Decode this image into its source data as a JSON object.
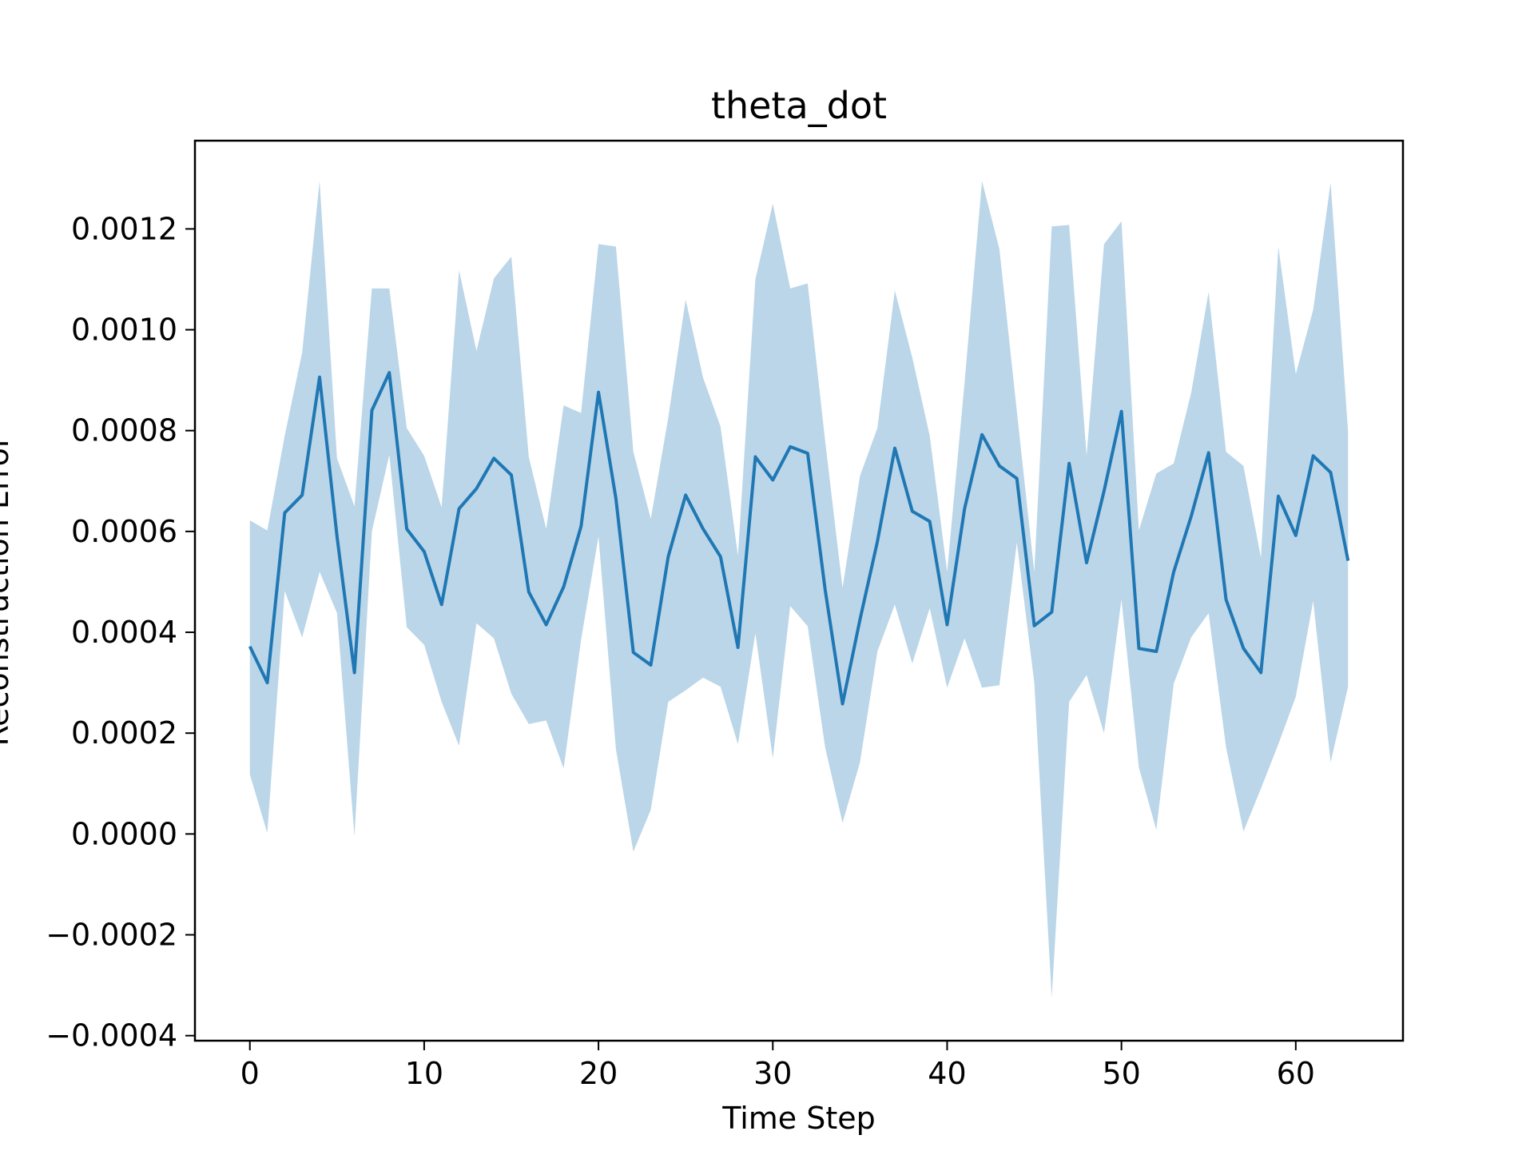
{
  "chart_data": {
    "type": "line",
    "title": "theta_dot",
    "xlabel": "Time Step",
    "ylabel": "Reconstruction Error",
    "xlim": [
      -3.15,
      66.15
    ],
    "ylim": [
      -0.00041,
      0.001375
    ],
    "xticks": [
      0,
      10,
      20,
      30,
      40,
      50,
      60
    ],
    "xtick_labels": [
      "0",
      "10",
      "20",
      "30",
      "40",
      "50",
      "60"
    ],
    "yticks": [
      -0.0004,
      -0.0002,
      0.0,
      0.0002,
      0.0004,
      0.0006,
      0.0008,
      0.001,
      0.0012
    ],
    "ytick_labels": [
      "−0.0004",
      "−0.0002",
      "0.0000",
      "0.0002",
      "0.0004",
      "0.0006",
      "0.0008",
      "0.0010",
      "0.0012"
    ],
    "grid": false,
    "colors": {
      "line": "#1f77b4",
      "band": "#1f77b4",
      "band_opacity": 0.3
    },
    "series": [
      {
        "x": [
          0,
          1,
          2,
          3,
          4,
          5,
          6,
          7,
          8,
          9,
          10,
          11,
          12,
          13,
          14,
          15,
          16,
          17,
          18,
          19,
          20,
          21,
          22,
          23,
          24,
          25,
          26,
          27,
          28,
          29,
          30,
          31,
          32,
          33,
          34,
          35,
          36,
          37,
          38,
          39,
          40,
          41,
          42,
          43,
          44,
          45,
          46,
          47,
          48,
          49,
          50,
          51,
          52,
          53,
          54,
          55,
          56,
          57,
          58,
          59,
          60,
          61,
          62,
          63
        ],
        "mean": [
          0.000372,
          0.0003,
          0.000637,
          0.000672,
          0.000906,
          0.00059,
          0.00032,
          0.00084,
          0.000915,
          0.000605,
          0.00056,
          0.000455,
          0.000645,
          0.000685,
          0.000745,
          0.000712,
          0.00048,
          0.000415,
          0.00049,
          0.00061,
          0.000876,
          0.000665,
          0.00036,
          0.000335,
          0.00055,
          0.000672,
          0.000605,
          0.00055,
          0.00037,
          0.000748,
          0.000702,
          0.000768,
          0.000755,
          0.000485,
          0.000258,
          0.000425,
          0.00058,
          0.000765,
          0.00064,
          0.00062,
          0.000415,
          0.000645,
          0.000792,
          0.00073,
          0.000705,
          0.000413,
          0.00044,
          0.000735,
          0.000538,
          0.00068,
          0.000838,
          0.000368,
          0.000362,
          0.00052,
          0.00063,
          0.000756,
          0.000465,
          0.000368,
          0.00032,
          0.00067,
          0.000592,
          0.00075,
          0.000717,
          0.000542
        ],
        "upper": [
          0.000622,
          0.000602,
          0.00079,
          0.000955,
          0.001295,
          0.000745,
          0.00065,
          0.001082,
          0.001082,
          0.000805,
          0.00075,
          0.000648,
          0.001118,
          0.000958,
          0.001102,
          0.001145,
          0.000748,
          0.000605,
          0.00085,
          0.000835,
          0.00117,
          0.001165,
          0.000758,
          0.000625,
          0.000825,
          0.00106,
          0.000905,
          0.000808,
          0.000552,
          0.0011,
          0.00125,
          0.001082,
          0.001092,
          0.00078,
          0.000488,
          0.00071,
          0.000805,
          0.001078,
          0.000945,
          0.00079,
          0.00052,
          0.000895,
          0.001295,
          0.00116,
          0.000838,
          0.00052,
          0.001205,
          0.001208,
          0.00075,
          0.00117,
          0.001215,
          0.000602,
          0.000715,
          0.000735,
          0.000875,
          0.001075,
          0.000758,
          0.00073,
          0.000548,
          0.001165,
          0.000912,
          0.00104,
          0.001292,
          0.000798
        ],
        "lower": [
          0.000118,
          2e-06,
          0.000482,
          0.00039,
          0.00052,
          0.000438,
          -5e-06,
          0.0006,
          0.000752,
          0.00041,
          0.000375,
          0.000262,
          0.000175,
          0.000418,
          0.000388,
          0.000278,
          0.000218,
          0.000225,
          0.00013,
          0.000385,
          0.00059,
          0.000168,
          -3.5e-05,
          4.8e-05,
          0.000262,
          0.000285,
          0.00031,
          0.000292,
          0.000178,
          0.000398,
          0.00015,
          0.000452,
          0.000412,
          0.000172,
          2.2e-05,
          0.000142,
          0.000362,
          0.000455,
          0.000338,
          0.000448,
          0.00029,
          0.000388,
          0.00029,
          0.000295,
          0.000578,
          0.0003,
          -0.000325,
          0.000262,
          0.000315,
          0.0002,
          0.000465,
          0.000132,
          8e-06,
          0.000298,
          0.00039,
          0.000438,
          0.000172,
          5e-06,
          9e-05,
          0.000178,
          0.000272,
          0.000462,
          0.000142,
          0.000292
        ]
      }
    ]
  }
}
